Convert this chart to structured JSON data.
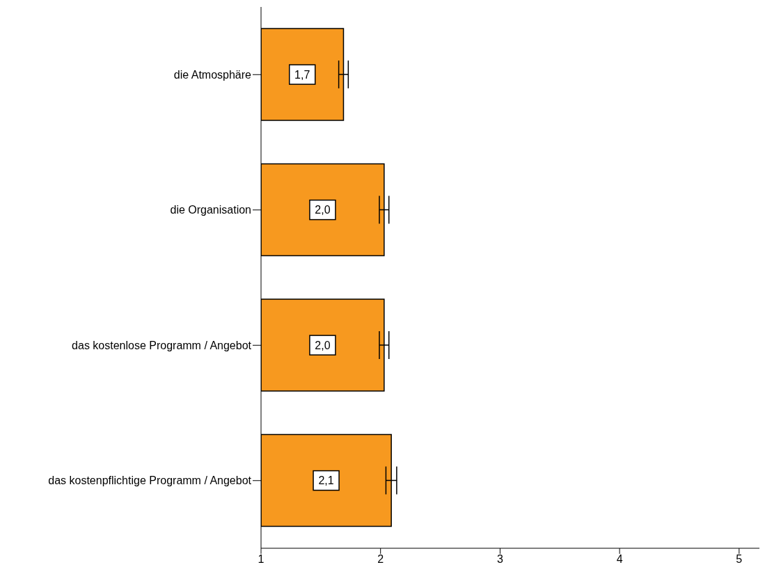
{
  "chart_data": {
    "type": "bar",
    "orientation": "horizontal",
    "categories": [
      "die Atmosphäre",
      "die Organisation",
      "das kostenlose Programm / Angebot",
      "das kostenpflichtige Programm / Angebot"
    ],
    "values": [
      1.69,
      2.03,
      2.03,
      2.09
    ],
    "errors": [
      0.04,
      0.04,
      0.04,
      0.045
    ],
    "value_labels": [
      "1,7",
      "2,0",
      "2,0",
      "2,1"
    ],
    "color": "#f7991f",
    "xlim": [
      1,
      5.17
    ],
    "xticks": [
      1,
      2,
      3,
      4,
      5
    ],
    "grid": false,
    "legend": false
  }
}
